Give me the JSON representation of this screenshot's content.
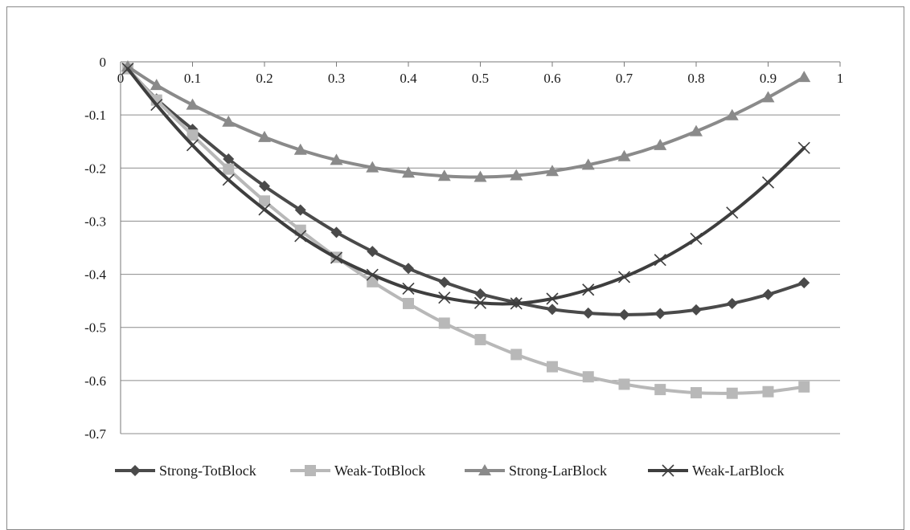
{
  "chart_data": {
    "type": "line",
    "title": "",
    "xlabel": "",
    "ylabel": "",
    "xlim": [
      0,
      1
    ],
    "ylim": [
      -0.7,
      0
    ],
    "x_ticks": [
      0,
      0.1,
      0.2,
      0.3,
      0.4,
      0.5,
      0.6,
      0.7,
      0.8,
      0.9,
      1
    ],
    "x_tick_labels": [
      "0",
      "0.1",
      "0.2",
      "0.3",
      "0.4",
      "0.5",
      "0.6",
      "0.7",
      "0.8",
      "0.9",
      "1"
    ],
    "y_ticks": [
      0,
      -0.1,
      -0.2,
      -0.3,
      -0.4,
      -0.5,
      -0.6,
      -0.7
    ],
    "y_tick_labels": [
      "0",
      "-0.1",
      "-0.2",
      "-0.3",
      "-0.4",
      "-0.5",
      "-0.6",
      "-0.7"
    ],
    "grid": "horizontal",
    "legend_position": "bottom",
    "x": [
      0.01,
      0.05,
      0.1,
      0.15,
      0.2,
      0.25,
      0.3,
      0.35,
      0.4,
      0.45,
      0.5,
      0.55,
      0.6,
      0.65,
      0.7,
      0.75,
      0.8,
      0.85,
      0.9,
      0.95
    ],
    "series": [
      {
        "name": "Strong-TotBlock",
        "color": "#4a4a4a",
        "marker": "diamond",
        "values": [
          -0.013,
          -0.07,
          -0.127,
          -0.183,
          -0.234,
          -0.279,
          -0.321,
          -0.357,
          -0.389,
          -0.415,
          -0.437,
          -0.453,
          -0.466,
          -0.473,
          -0.476,
          -0.474,
          -0.467,
          -0.455,
          -0.438,
          -0.416
        ]
      },
      {
        "name": "Weak-TotBlock",
        "color": "#b8b8b8",
        "marker": "square",
        "values": [
          -0.013,
          -0.072,
          -0.138,
          -0.202,
          -0.262,
          -0.317,
          -0.368,
          -0.414,
          -0.455,
          -0.492,
          -0.523,
          -0.551,
          -0.574,
          -0.593,
          -0.607,
          -0.617,
          -0.623,
          -0.624,
          -0.621,
          -0.612
        ]
      },
      {
        "name": "Strong-LarBlock",
        "color": "#8a8a8a",
        "marker": "triangle",
        "values": [
          -0.009,
          -0.044,
          -0.081,
          -0.113,
          -0.142,
          -0.166,
          -0.185,
          -0.199,
          -0.209,
          -0.215,
          -0.217,
          -0.214,
          -0.206,
          -0.194,
          -0.178,
          -0.157,
          -0.131,
          -0.101,
          -0.067,
          -0.029
        ]
      },
      {
        "name": "Weak-LarBlock",
        "color": "#3e3e3e",
        "marker": "x",
        "values": [
          -0.013,
          -0.081,
          -0.157,
          -0.222,
          -0.278,
          -0.328,
          -0.369,
          -0.401,
          -0.427,
          -0.444,
          -0.454,
          -0.455,
          -0.446,
          -0.429,
          -0.405,
          -0.373,
          -0.333,
          -0.284,
          -0.227,
          -0.162
        ]
      }
    ]
  }
}
